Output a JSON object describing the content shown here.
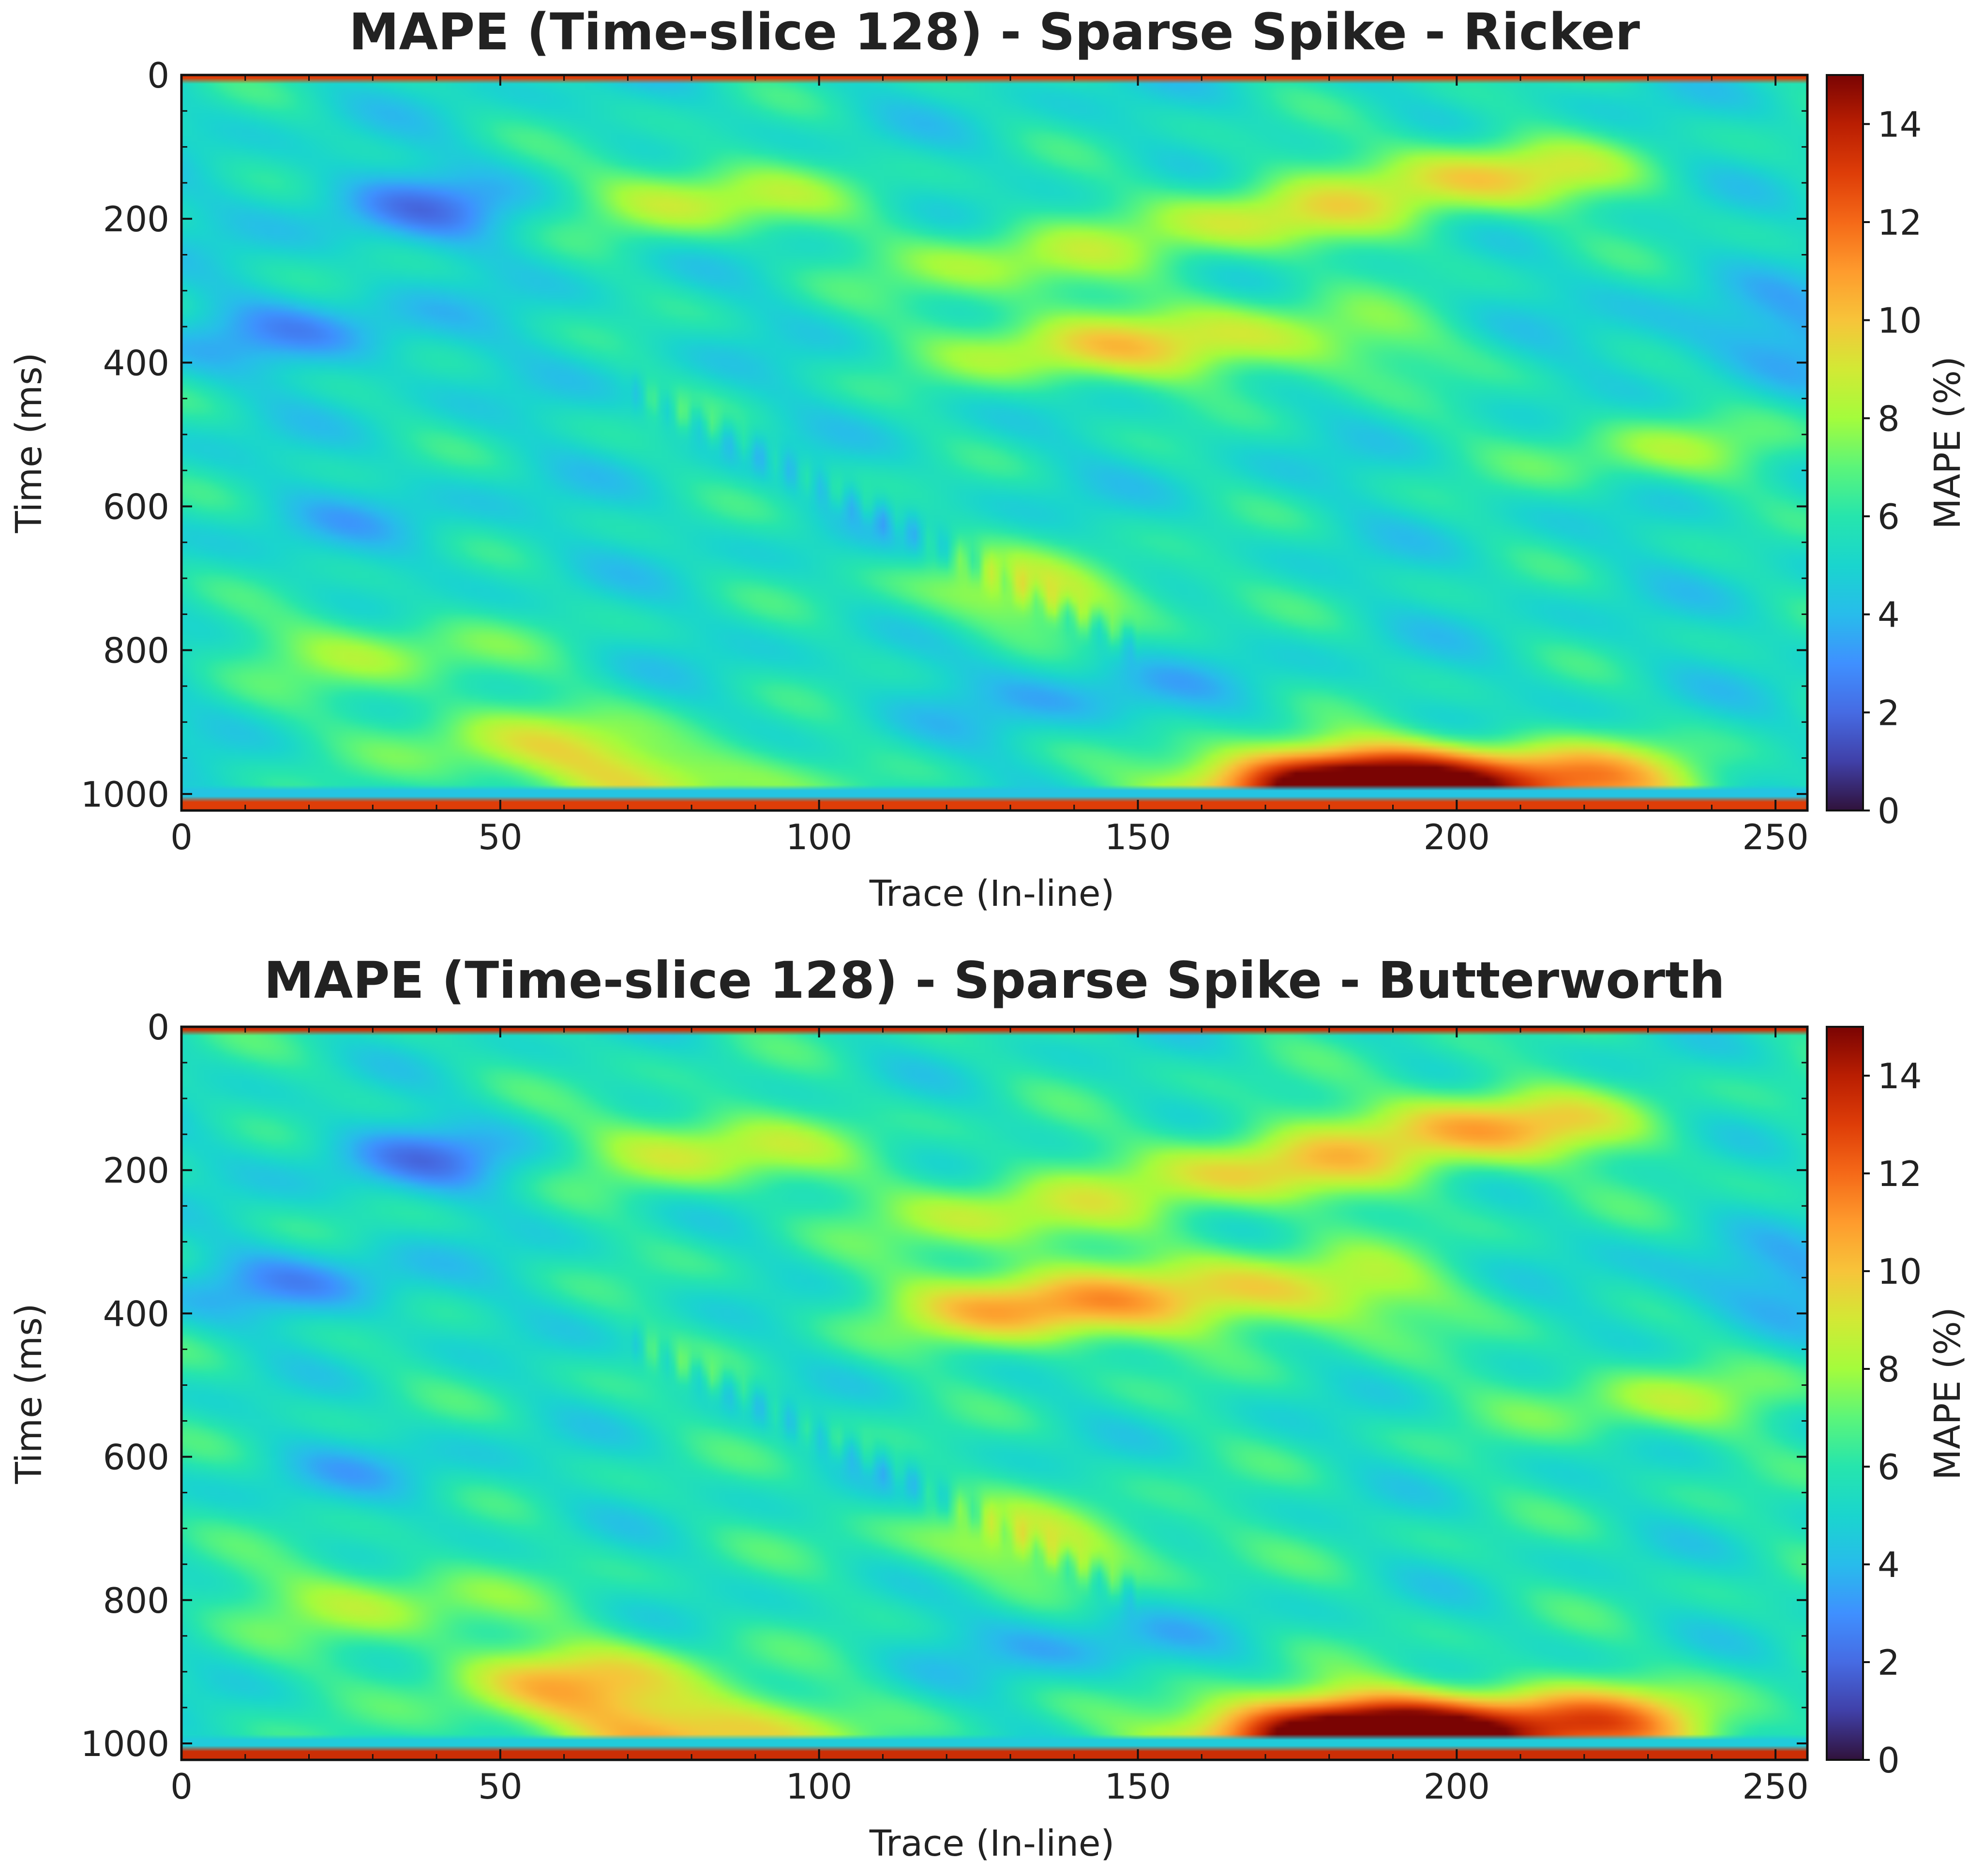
{
  "chart_data": [
    {
      "type": "heatmap",
      "title": "MAPE (Time-slice 128) - Sparse Spike - Ricker",
      "xlabel": "Trace (In-line)",
      "ylabel": "Time (ms)",
      "xlim": [
        0,
        255
      ],
      "ylim": [
        1023,
        0
      ],
      "xticks": [
        0,
        50,
        100,
        150,
        200,
        250
      ],
      "yticks": [
        0,
        200,
        400,
        600,
        800,
        1000
      ],
      "colorbar": {
        "label": "MAPE (%)",
        "range": [
          0,
          15
        ],
        "ticks": [
          0,
          2,
          4,
          6,
          8,
          10,
          12,
          14
        ],
        "colormap": "turbo"
      },
      "field": {
        "background_mape": 5.3,
        "features": [
          {
            "trace": 40,
            "time": 180,
            "mape": 3.0
          },
          {
            "trace": 20,
            "time": 360,
            "mape": 3.5
          },
          {
            "trace": 30,
            "time": 620,
            "mape": 4.5
          },
          {
            "trace": 80,
            "time": 170,
            "mape": 8.8
          },
          {
            "trace": 130,
            "time": 260,
            "mape": 8.0
          },
          {
            "trace": 170,
            "time": 200,
            "mape": 8.8
          },
          {
            "trace": 205,
            "time": 140,
            "mape": 9.5
          },
          {
            "trace": 140,
            "time": 380,
            "mape": 9.0
          },
          {
            "trace": 175,
            "time": 370,
            "mape": 8.3
          },
          {
            "trace": 250,
            "time": 360,
            "mape": 3.5
          },
          {
            "trace": 230,
            "time": 520,
            "mape": 7.5
          },
          {
            "trace": 30,
            "time": 800,
            "mape": 7.8
          },
          {
            "trace": 50,
            "time": 920,
            "mape": 8.0
          },
          {
            "trace": 75,
            "time": 980,
            "mape": 9.0
          },
          {
            "trace": 135,
            "time": 720,
            "mape": 8.5
          },
          {
            "trace": 140,
            "time": 860,
            "mape": 4.0
          },
          {
            "trace": 178,
            "time": 990,
            "mape": 14.0
          },
          {
            "trace": 195,
            "time": 990,
            "mape": 11.0
          },
          {
            "trace": 220,
            "time": 985,
            "mape": 10.0
          }
        ],
        "edge_band_mape": 13.0
      }
    },
    {
      "type": "heatmap",
      "title": "MAPE (Time-slice 128) - Sparse Spike - Butterworth",
      "xlabel": "Trace (In-line)",
      "ylabel": "Time (ms)",
      "xlim": [
        0,
        255
      ],
      "ylim": [
        1023,
        0
      ],
      "xticks": [
        0,
        50,
        100,
        150,
        200,
        250
      ],
      "yticks": [
        0,
        200,
        400,
        600,
        800,
        1000
      ],
      "colorbar": {
        "label": "MAPE (%)",
        "range": [
          0,
          15
        ],
        "ticks": [
          0,
          2,
          4,
          6,
          8,
          10,
          12,
          14
        ],
        "colormap": "turbo"
      },
      "field": {
        "background_mape": 5.6,
        "features": [
          {
            "trace": 40,
            "time": 180,
            "mape": 3.0
          },
          {
            "trace": 20,
            "time": 360,
            "mape": 3.5
          },
          {
            "trace": 30,
            "time": 620,
            "mape": 4.5
          },
          {
            "trace": 80,
            "time": 170,
            "mape": 9.0
          },
          {
            "trace": 130,
            "time": 260,
            "mape": 8.5
          },
          {
            "trace": 170,
            "time": 200,
            "mape": 9.5
          },
          {
            "trace": 205,
            "time": 140,
            "mape": 10.5
          },
          {
            "trace": 135,
            "time": 390,
            "mape": 11.0
          },
          {
            "trace": 175,
            "time": 370,
            "mape": 9.5
          },
          {
            "trace": 250,
            "time": 360,
            "mape": 3.5
          },
          {
            "trace": 230,
            "time": 520,
            "mape": 7.8
          },
          {
            "trace": 30,
            "time": 800,
            "mape": 8.0
          },
          {
            "trace": 60,
            "time": 910,
            "mape": 9.5
          },
          {
            "trace": 80,
            "time": 985,
            "mape": 10.5
          },
          {
            "trace": 135,
            "time": 720,
            "mape": 8.5
          },
          {
            "trace": 140,
            "time": 860,
            "mape": 4.0
          },
          {
            "trace": 178,
            "time": 990,
            "mape": 14.0
          },
          {
            "trace": 195,
            "time": 990,
            "mape": 12.0
          },
          {
            "trace": 222,
            "time": 975,
            "mape": 11.0
          }
        ],
        "edge_band_mape": 13.5
      }
    }
  ]
}
